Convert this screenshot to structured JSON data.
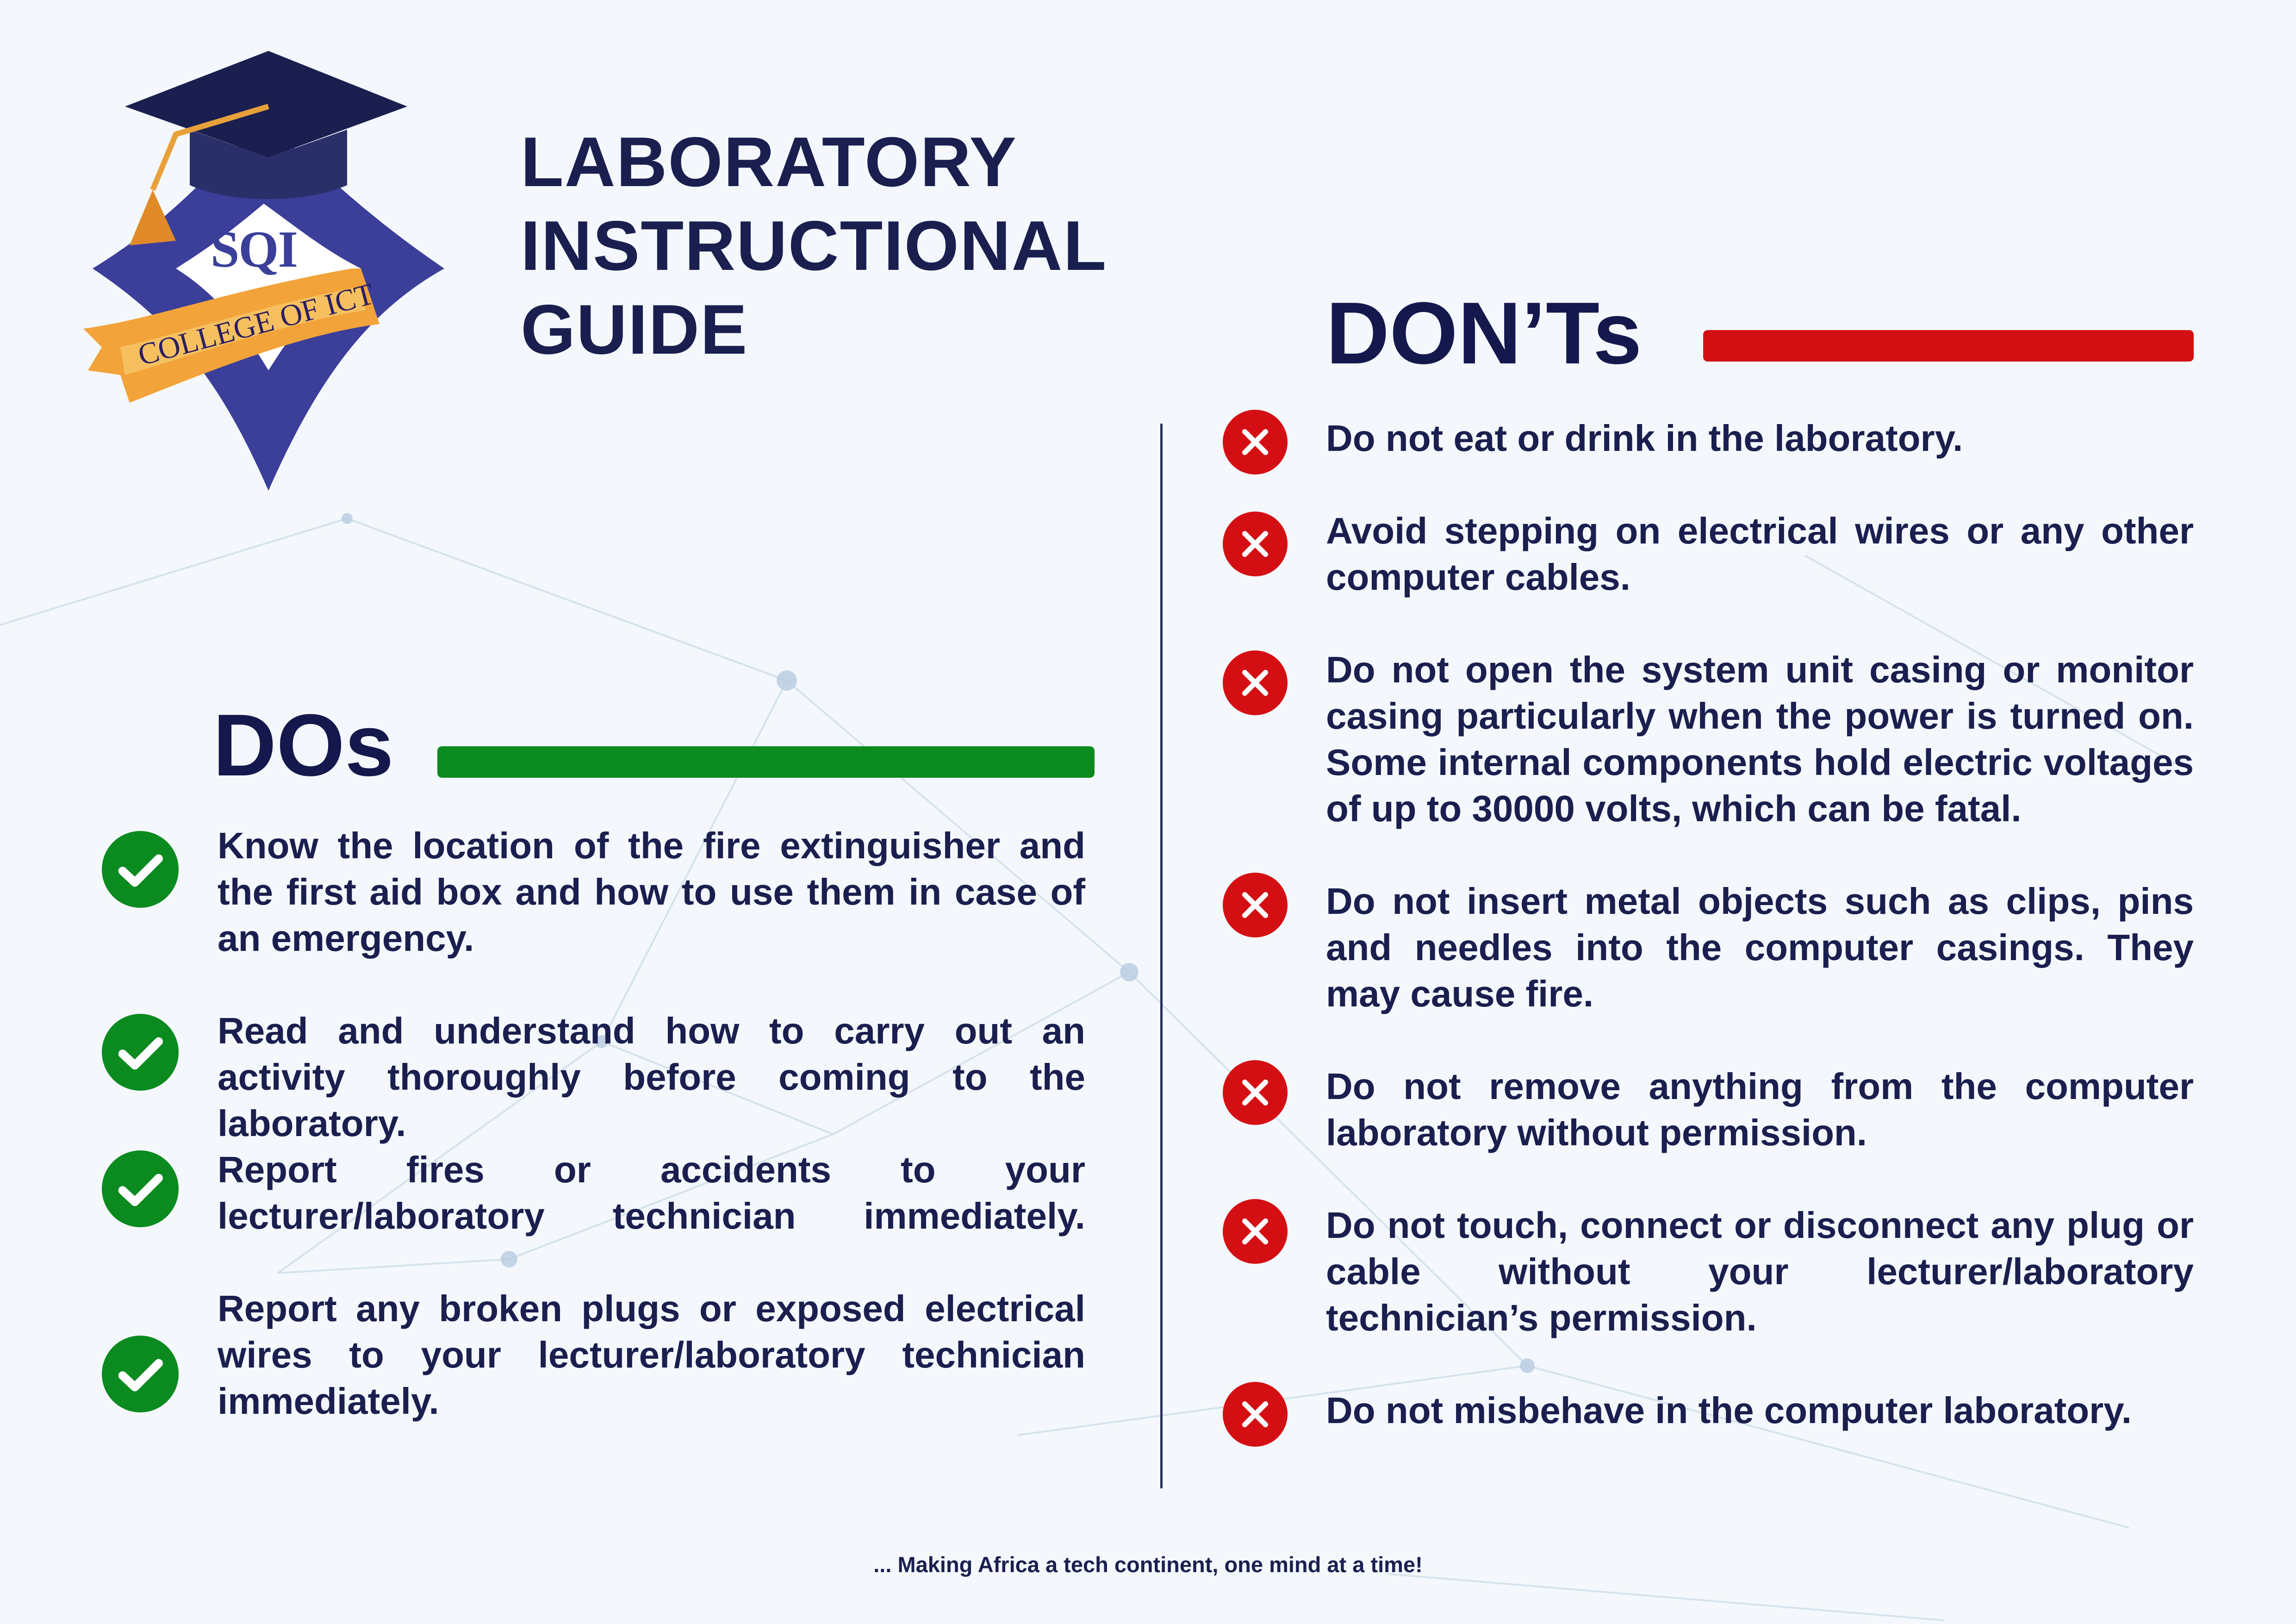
{
  "logo": {
    "mark": "SQI",
    "banner": "COLLEGE OF ICT"
  },
  "title": [
    "LABORATORY",
    "INSTRUCTIONAL",
    "GUIDE"
  ],
  "dos": {
    "heading": "DOs",
    "items": [
      "Know the location of the fire extinguisher and the first aid box and how to use them in case of an emergency.",
      "Read and understand how to carry out an activity thoroughly before coming to the laboratory.",
      "Report fires or accidents to your lecturer/laboratory technician immediately.",
      "Report any broken plugs or exposed electrical wires to your lecturer/laboratory technician immediately."
    ]
  },
  "donts": {
    "heading": "DON’Ts",
    "items": [
      "Do not eat or drink in the laboratory.",
      "Avoid stepping on electrical wires or any other computer cables.",
      "Do not open the system unit casing or monitor casing particularly when the power is turned on. Some internal components hold electric voltages of up to 30000 volts, which can be fatal.",
      "Do not insert metal objects such as clips, pins and needles into the computer casings. They may cause fire.",
      "Do not remove anything from the computer laboratory without permission.",
      "Do not touch, connect or disconnect any plug or cable without your lecturer/laboratory technician’s permission.",
      "Do not misbehave in the computer laboratory."
    ]
  },
  "tagline": "... Making Africa a tech continent, one mind at a time!",
  "icons": {
    "do": "checkmark-circle-icon",
    "dont": "x-circle-icon"
  },
  "colors": {
    "navy": "#1a1f4f",
    "green": "#0a8a1f",
    "red": "#d40f14",
    "gold": "#f2a33a"
  }
}
